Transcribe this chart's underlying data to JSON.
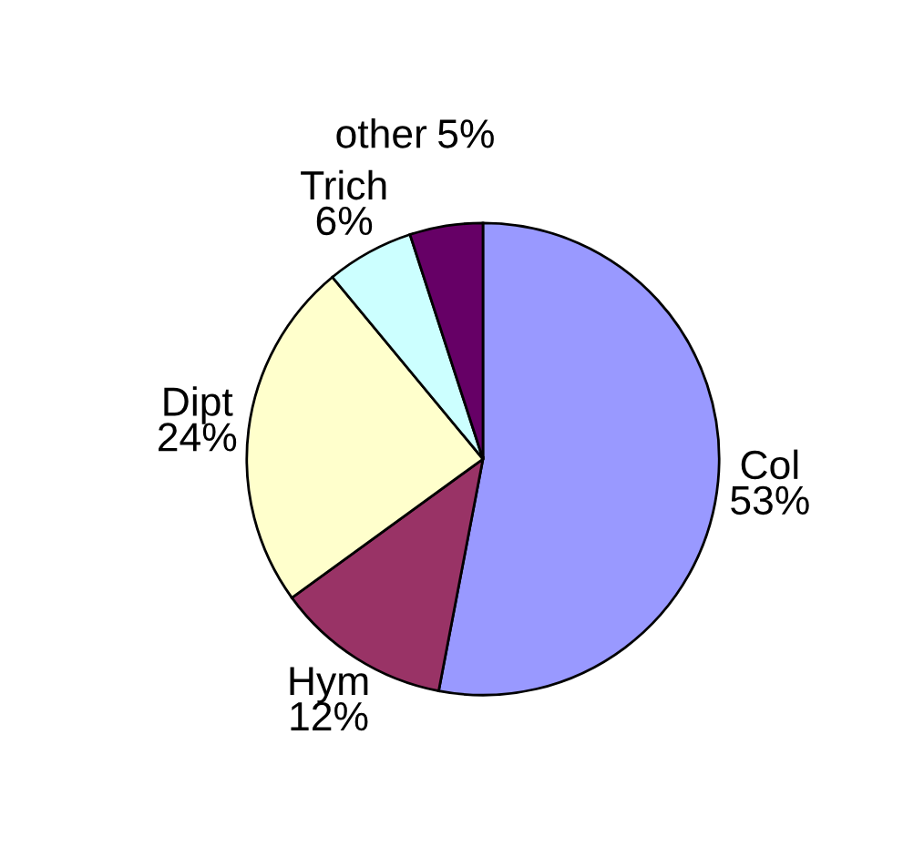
{
  "chart_data": {
    "type": "pie",
    "categories": [
      "Col",
      "Hym",
      "Dipt",
      "Trich",
      "other"
    ],
    "values": [
      53,
      12,
      24,
      6,
      5
    ],
    "value_labels": [
      "53%",
      "12%",
      "24%",
      "6%",
      "5%"
    ],
    "colors": [
      "#9999ff",
      "#993366",
      "#ffffcc",
      "#ccffff",
      "#660066"
    ]
  }
}
